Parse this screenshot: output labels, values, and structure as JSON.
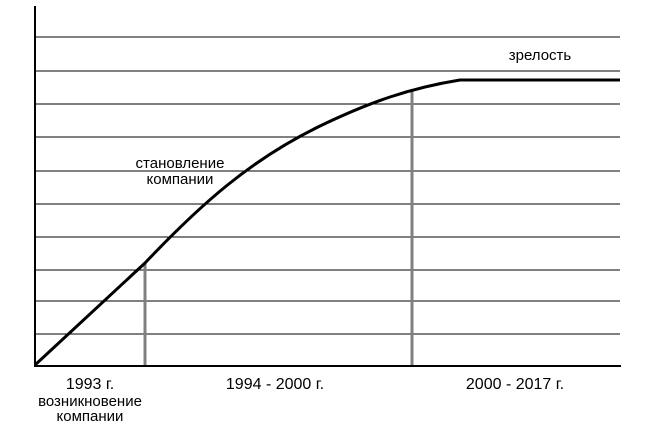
{
  "chart_data": {
    "type": "line",
    "title": "",
    "xlabel": "",
    "ylabel": "",
    "grid": true,
    "curve_label_top": "зрелость",
    "curve_label_mid_line1": "становление",
    "curve_label_mid_line2": "компании",
    "stages": [
      {
        "label": "1993 г."
      },
      {
        "label": "1994 - 2000 г."
      },
      {
        "label": "2000 - 2017 г."
      }
    ],
    "bottom_label_line1": "возникновение",
    "bottom_label_line2": "компании",
    "colors": {
      "axis": "#000000",
      "grid": "#000000",
      "curve": "#000000",
      "divider": "#808080"
    }
  }
}
